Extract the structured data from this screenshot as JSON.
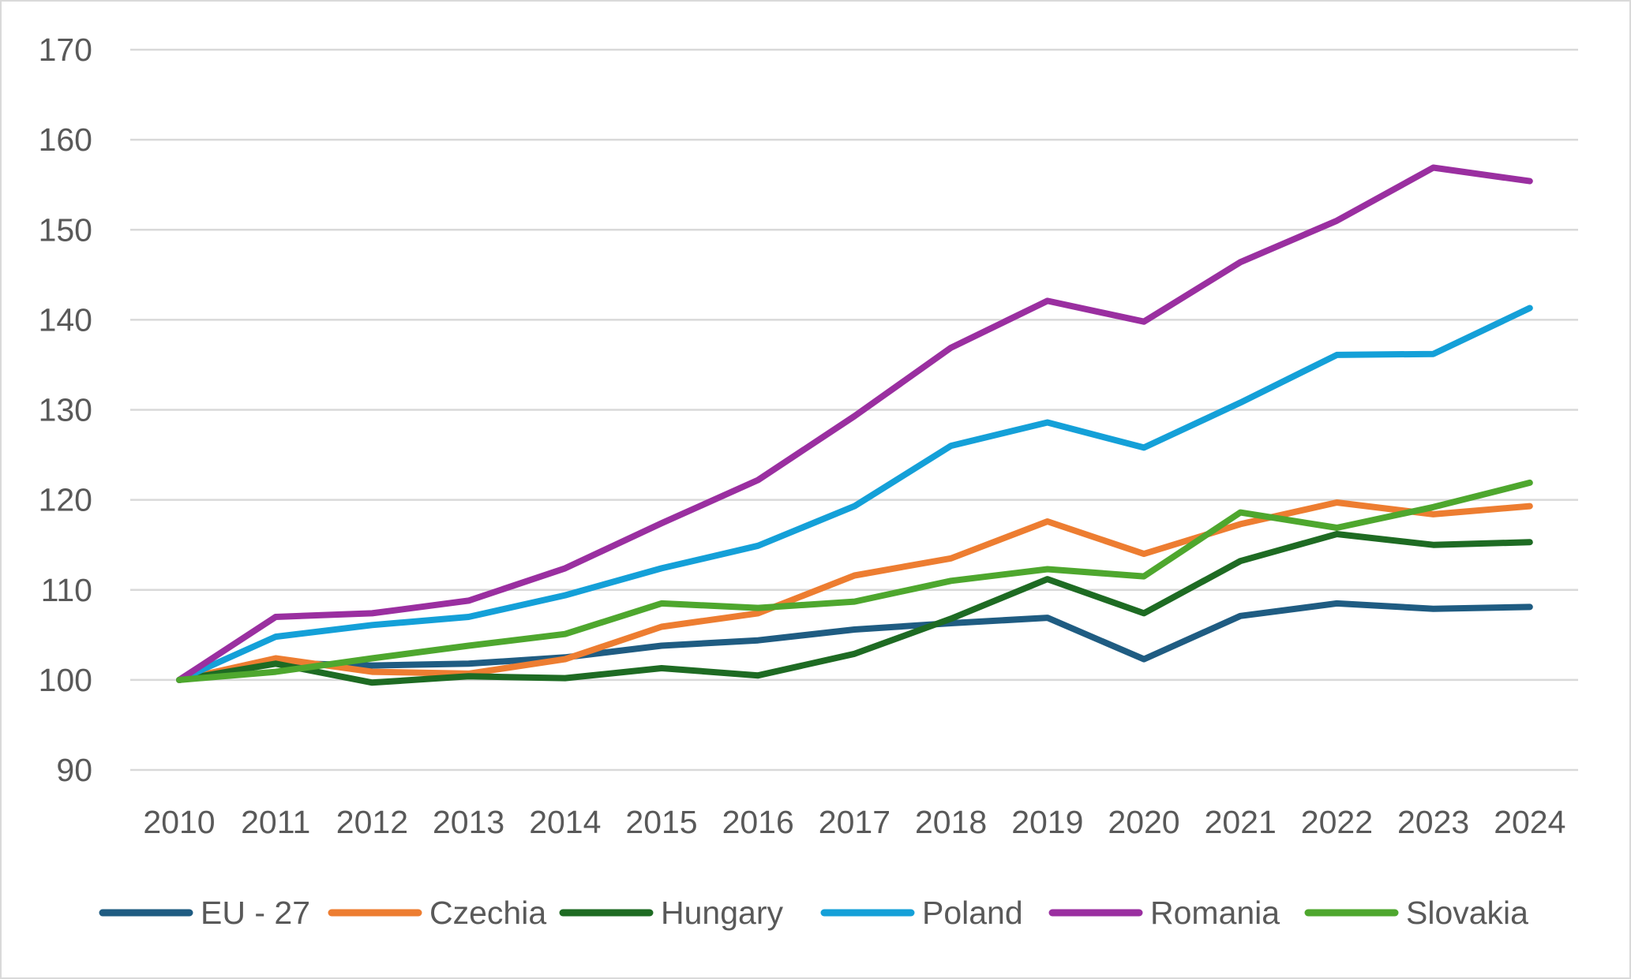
{
  "chart_data": {
    "type": "line",
    "title": "",
    "xlabel": "",
    "ylabel": "",
    "categories": [
      "2010",
      "2011",
      "2012",
      "2013",
      "2014",
      "2015",
      "2016",
      "2017",
      "2018",
      "2019",
      "2020",
      "2021",
      "2022",
      "2023",
      "2024"
    ],
    "y_ticks": [
      "90",
      "100",
      "110",
      "120",
      "130",
      "140",
      "150",
      "160",
      "170"
    ],
    "ylim": [
      90,
      170
    ],
    "grid": true,
    "legend_position": "bottom",
    "series": [
      {
        "name": "EU - 27",
        "color": "#1f5c82",
        "values": [
          100,
          101.9,
          101.6,
          101.8,
          102.5,
          103.8,
          104.4,
          105.6,
          106.3,
          106.9,
          102.3,
          107.1,
          108.5,
          107.9,
          108.1
        ]
      },
      {
        "name": "Czechia",
        "color": "#ed7d31",
        "values": [
          100,
          102.4,
          100.9,
          100.7,
          102.3,
          105.9,
          107.4,
          111.6,
          113.5,
          117.6,
          114.0,
          117.3,
          119.7,
          118.4,
          119.3
        ]
      },
      {
        "name": "Hungary",
        "color": "#1e6b23",
        "values": [
          100,
          101.8,
          99.7,
          100.4,
          100.2,
          101.3,
          100.5,
          102.9,
          106.8,
          111.2,
          107.4,
          113.2,
          116.2,
          115.0,
          115.3
        ]
      },
      {
        "name": "Poland",
        "color": "#14a0d8",
        "values": [
          100,
          104.8,
          106.1,
          107.0,
          109.4,
          112.4,
          114.9,
          119.3,
          126.0,
          128.6,
          125.8,
          130.8,
          136.1,
          136.2,
          141.3
        ]
      },
      {
        "name": "Romania",
        "color": "#9a2fa0",
        "values": [
          100,
          107.0,
          107.4,
          108.8,
          112.4,
          117.4,
          122.2,
          129.3,
          136.9,
          142.1,
          139.8,
          146.4,
          151.0,
          156.9,
          155.4
        ]
      },
      {
        "name": "Slovakia",
        "color": "#4ea72e",
        "values": [
          100,
          100.9,
          102.4,
          103.8,
          105.1,
          108.5,
          108.0,
          108.7,
          111.0,
          112.3,
          111.5,
          118.6,
          116.9,
          119.2,
          121.9
        ]
      }
    ]
  }
}
